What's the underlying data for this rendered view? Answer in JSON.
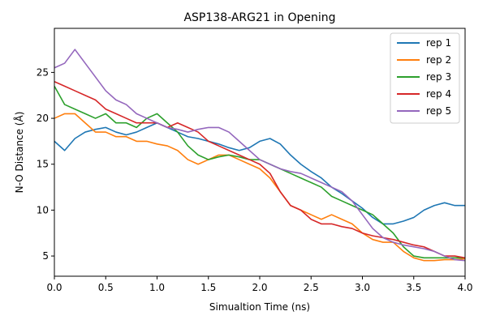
{
  "chart_data": {
    "type": "line",
    "title": "ASP138-ARG21 in Opening",
    "xlabel": "Simualtion Time (ns)",
    "ylabel": "N-O Distance (Å)",
    "xlim": [
      0,
      4.0
    ],
    "ylim": [
      2.8,
      29.8
    ],
    "x_ticks": [
      0.0,
      0.5,
      1.0,
      1.5,
      2.0,
      2.5,
      3.0,
      3.5,
      4.0
    ],
    "y_ticks": [
      5,
      10,
      15,
      20,
      25
    ],
    "x_tick_labels": [
      "0.0",
      "0.5",
      "1.0",
      "1.5",
      "2.0",
      "2.5",
      "3.0",
      "3.5",
      "4.0"
    ],
    "y_tick_labels": [
      "5",
      "10",
      "15",
      "20",
      "25"
    ],
    "grid": false,
    "legend_position": "top-right",
    "x": [
      0.0,
      0.1,
      0.2,
      0.3,
      0.4,
      0.5,
      0.6,
      0.7,
      0.8,
      0.9,
      1.0,
      1.1,
      1.2,
      1.3,
      1.4,
      1.5,
      1.6,
      1.7,
      1.8,
      1.9,
      2.0,
      2.1,
      2.2,
      2.3,
      2.4,
      2.5,
      2.6,
      2.7,
      2.8,
      2.9,
      3.0,
      3.1,
      3.2,
      3.3,
      3.4,
      3.5,
      3.6,
      3.7,
      3.8,
      3.9,
      4.0
    ],
    "series": [
      {
        "name": "rep 1",
        "color": "#1f77b4",
        "values": [
          17.5,
          16.5,
          17.8,
          18.5,
          18.8,
          19.0,
          18.5,
          18.2,
          18.5,
          19.0,
          19.5,
          19.0,
          18.5,
          18.0,
          17.8,
          17.5,
          17.2,
          16.8,
          16.5,
          16.8,
          17.5,
          17.8,
          17.2,
          16.0,
          15.0,
          14.2,
          13.5,
          12.5,
          11.8,
          11.0,
          10.2,
          9.2,
          8.5,
          8.5,
          8.8,
          9.2,
          10.0,
          10.5,
          10.8,
          10.5,
          10.5
        ]
      },
      {
        "name": "rep 2",
        "color": "#ff7f0e",
        "values": [
          20.0,
          20.5,
          20.5,
          19.5,
          18.5,
          18.5,
          18.0,
          18.0,
          17.5,
          17.5,
          17.2,
          17.0,
          16.5,
          15.5,
          15.0,
          15.5,
          16.0,
          16.0,
          15.5,
          15.0,
          14.5,
          13.5,
          12.0,
          10.5,
          10.0,
          9.5,
          9.0,
          9.5,
          9.0,
          8.5,
          7.5,
          6.8,
          6.5,
          6.5,
          5.5,
          4.8,
          4.5,
          4.5,
          4.6,
          4.6,
          4.7
        ]
      },
      {
        "name": "rep 3",
        "color": "#2ca02c",
        "values": [
          23.5,
          21.5,
          21.0,
          20.5,
          20.0,
          20.5,
          19.5,
          19.5,
          19.0,
          20.0,
          20.5,
          19.5,
          18.5,
          17.0,
          16.0,
          15.5,
          15.8,
          16.0,
          15.8,
          15.5,
          15.5,
          15.0,
          14.5,
          14.0,
          13.5,
          13.0,
          12.5,
          11.5,
          11.0,
          10.5,
          10.0,
          9.5,
          8.5,
          7.5,
          6.0,
          5.0,
          4.8,
          4.8,
          4.8,
          4.8,
          4.8
        ]
      },
      {
        "name": "rep 4",
        "color": "#d62728",
        "values": [
          24.0,
          23.5,
          23.0,
          22.5,
          22.0,
          21.0,
          20.5,
          20.0,
          19.5,
          19.5,
          19.5,
          19.0,
          19.5,
          19.0,
          18.5,
          17.5,
          17.0,
          16.5,
          16.0,
          15.5,
          15.0,
          14.0,
          12.0,
          10.5,
          10.0,
          9.0,
          8.5,
          8.5,
          8.2,
          8.0,
          7.5,
          7.2,
          7.0,
          6.8,
          6.5,
          6.2,
          6.0,
          5.5,
          5.0,
          5.0,
          4.8
        ]
      },
      {
        "name": "rep 5",
        "color": "#9467bd",
        "values": [
          25.5,
          26.0,
          27.5,
          26.0,
          24.5,
          23.0,
          22.0,
          21.5,
          20.5,
          20.0,
          19.5,
          19.0,
          18.8,
          18.5,
          18.8,
          19.0,
          19.0,
          18.5,
          17.5,
          16.5,
          15.5,
          15.0,
          14.5,
          14.2,
          14.0,
          13.5,
          13.0,
          12.5,
          12.0,
          11.0,
          9.5,
          8.0,
          7.0,
          6.5,
          6.2,
          6.0,
          5.8,
          5.5,
          5.0,
          4.6,
          4.5
        ]
      }
    ]
  }
}
